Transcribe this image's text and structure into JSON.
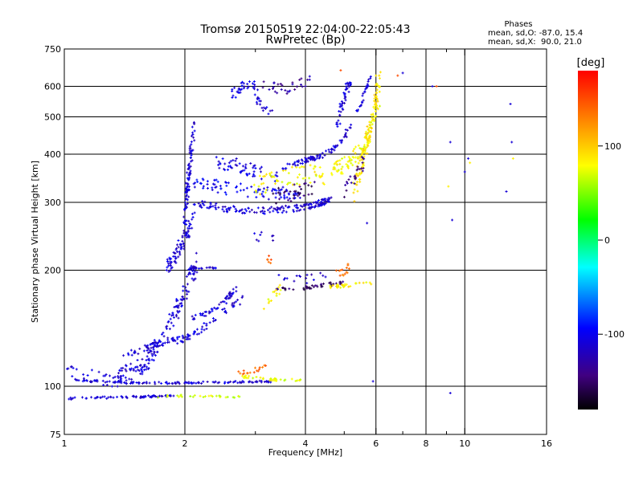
{
  "chart_data": {
    "type": "scatter",
    "title": "Tromsø 20150519 22:04:00-22:05:43",
    "subtitle": "RwPretec (Bp)",
    "xlabel": "Frequency [MHz]",
    "ylabel": "Stationary phase Virtual Height [km]",
    "x_scale": "log",
    "y_scale": "log",
    "xlim": [
      1,
      16
    ],
    "ylim": [
      75,
      750
    ],
    "x_ticks": [
      1,
      2,
      4,
      6,
      8,
      10,
      16
    ],
    "x_minor_ticks": [
      3,
      5,
      7,
      9
    ],
    "y_ticks": [
      75,
      100,
      200,
      300,
      400,
      500,
      600,
      750
    ],
    "grid": true,
    "x_gridlines": [
      2,
      4,
      6,
      8,
      10
    ],
    "y_gridlines": [
      100,
      200,
      300,
      400,
      500,
      600
    ],
    "info": {
      "heading": "Phases",
      "line1": "mean, sd,O: -87.0, 15.4",
      "line2": "mean, sd,X:  90.0, 21.0"
    },
    "colorbar": {
      "label": "[deg]",
      "range": [
        -180,
        180
      ],
      "ticks": [
        100,
        0,
        -100
      ],
      "colors": [
        "#ff0000",
        "#ff8000",
        "#ffff00",
        "#00ff00",
        "#00ffff",
        "#0000ff",
        "#400080",
        "#000000"
      ]
    },
    "traces": [
      {
        "kind": "line",
        "x": [
          1.0,
          1.3,
          1.6,
          1.9
        ],
        "y": [
          93,
          93.5,
          94,
          94.5
        ],
        "phase": -110,
        "n": 70,
        "spread_y": 0.006
      },
      {
        "kind": "line",
        "x": [
          1.7,
          2.0,
          2.4,
          2.8
        ],
        "y": [
          94,
          94.5,
          94,
          94
        ],
        "phase": 70,
        "n": 28,
        "spread_y": 0.006
      },
      {
        "kind": "line",
        "x": [
          1.05,
          1.3,
          1.6,
          2.0,
          2.6,
          3.3
        ],
        "y": [
          104,
          102.5,
          102,
          102,
          102.5,
          103
        ],
        "phase": -110,
        "n": 120,
        "spread_y": 0.006
      },
      {
        "kind": "line",
        "x": [
          2.8,
          3.3,
          3.9
        ],
        "y": [
          106,
          104,
          104
        ],
        "phase": 75,
        "n": 35,
        "spread_y": 0.008
      },
      {
        "kind": "line",
        "x": [
          2.7,
          3.0,
          3.2
        ],
        "y": [
          108,
          110,
          115
        ],
        "phase": 140,
        "n": 18,
        "spread_y": 0.012
      },
      {
        "kind": "line",
        "x": [
          1.0,
          1.2,
          1.4
        ],
        "y": [
          110,
          105,
          103
        ],
        "phase": -110,
        "n": 30,
        "spread_y": 0.04
      },
      {
        "kind": "line",
        "x": [
          1.35,
          1.6,
          1.9,
          2.15
        ],
        "y": [
          104,
          115,
          155,
          210
        ],
        "phase": -110,
        "n": 170,
        "spread_y": 0.06
      },
      {
        "kind": "line",
        "x": [
          1.4,
          1.7,
          2.05,
          2.8
        ],
        "y": [
          120,
          128,
          134,
          170
        ],
        "phase": -110,
        "n": 110,
        "spread_y": 0.02
      },
      {
        "kind": "line",
        "x": [
          2.05,
          2.3,
          2.5,
          2.7
        ],
        "y": [
          150,
          155,
          165,
          180
        ],
        "phase": -110,
        "n": 50,
        "spread_y": 0.015
      },
      {
        "kind": "line",
        "x": [
          1.8,
          1.95,
          2.1
        ],
        "y": [
          200,
          230,
          270
        ],
        "phase": -110,
        "n": 80,
        "spread_y": 0.05
      },
      {
        "kind": "line",
        "x": [
          2.0,
          2.05,
          2.1
        ],
        "y": [
          270,
          360,
          470
        ],
        "phase": -110,
        "n": 90,
        "spread_y": 0.05
      },
      {
        "kind": "line",
        "x": [
          2.05,
          2.2,
          2.4
        ],
        "y": [
          202,
          203,
          202
        ],
        "phase": -110,
        "n": 24,
        "spread_y": 0.006
      },
      {
        "kind": "line",
        "x": [
          2.1,
          2.5,
          3.0,
          3.6,
          4.2,
          4.6
        ],
        "y": [
          300,
          289,
          285,
          288,
          295,
          305
        ],
        "phase": -110,
        "n": 160,
        "spread_y": 0.02
      },
      {
        "kind": "line",
        "x": [
          2.1,
          2.6,
          3.2,
          3.9
        ],
        "y": [
          340,
          325,
          318,
          320
        ],
        "phase": -100,
        "n": 90,
        "spread_y": 0.04
      },
      {
        "kind": "line",
        "x": [
          2.4,
          2.7,
          3.0,
          3.4
        ],
        "y": [
          380,
          375,
          360,
          345
        ],
        "phase": -105,
        "n": 55,
        "spread_y": 0.04
      },
      {
        "kind": "line",
        "x": [
          3.0,
          3.5,
          4.0,
          4.5
        ],
        "y": [
          330,
          345,
          355,
          352
        ],
        "phase": 80,
        "n": 60,
        "spread_y": 0.06
      },
      {
        "kind": "line",
        "x": [
          3.3,
          3.8,
          4.2
        ],
        "y": [
          310,
          318,
          330
        ],
        "phase": -150,
        "n": 30,
        "spread_y": 0.05
      },
      {
        "kind": "line",
        "x": [
          3.5,
          4.0,
          4.5,
          5.0,
          5.4,
          5.8
        ],
        "y": [
          370,
          385,
          400,
          440,
          520,
          640
        ],
        "phase": -110,
        "n": 110,
        "spread_y": 0.015
      },
      {
        "kind": "line",
        "x": [
          4.6,
          5.1,
          5.6,
          6.1
        ],
        "y": [
          360,
          380,
          420,
          520
        ],
        "phase": 80,
        "n": 80,
        "spread_y": 0.05
      },
      {
        "kind": "line",
        "x": [
          5.3,
          5.6,
          5.9,
          6.1
        ],
        "y": [
          320,
          400,
          500,
          620
        ],
        "phase": 90,
        "n": 120,
        "spread_y": 0.06
      },
      {
        "kind": "line",
        "x": [
          5.0,
          5.3,
          5.6
        ],
        "y": [
          320,
          350,
          380
        ],
        "phase": -140,
        "n": 25,
        "spread_y": 0.05
      },
      {
        "kind": "line",
        "x": [
          4.8,
          5.0,
          5.2
        ],
        "y": [
          480,
          560,
          640
        ],
        "phase": -110,
        "n": 45,
        "spread_y": 0.03
      },
      {
        "kind": "line",
        "x": [
          2.6,
          2.8,
          3.1
        ],
        "y": [
          570,
          600,
          610
        ],
        "phase": -105,
        "n": 30,
        "spread_y": 0.03
      },
      {
        "kind": "line",
        "x": [
          3.1,
          3.6,
          4.1
        ],
        "y": [
          600,
          590,
          620
        ],
        "phase": -130,
        "n": 30,
        "spread_y": 0.03
      },
      {
        "kind": "line",
        "x": [
          3.0,
          3.1,
          3.3
        ],
        "y": [
          580,
          530,
          520
        ],
        "phase": -110,
        "n": 20,
        "spread_y": 0.03
      },
      {
        "kind": "line",
        "x": [
          3.4,
          4.0,
          4.6,
          5.0
        ],
        "y": [
          178,
          180,
          184,
          186
        ],
        "phase": -150,
        "n": 45,
        "spread_y": 0.01
      },
      {
        "kind": "line",
        "x": [
          4.6,
          5.2,
          5.9
        ],
        "y": [
          181,
          183,
          185
        ],
        "phase": 85,
        "n": 30,
        "spread_y": 0.01
      },
      {
        "kind": "line",
        "x": [
          4.8,
          5.0,
          5.2
        ],
        "y": [
          193,
          200,
          208
        ],
        "phase": 140,
        "n": 14,
        "spread_y": 0.03
      },
      {
        "kind": "line",
        "x": [
          3.1,
          3.3,
          3.5
        ],
        "y": [
          155,
          170,
          180
        ],
        "phase": 85,
        "n": 14,
        "spread_y": 0.03
      },
      {
        "kind": "line",
        "x": [
          3.3,
          3.8,
          4.5
        ],
        "y": [
          195,
          190,
          192
        ],
        "phase": -115,
        "n": 16,
        "spread_y": 0.03
      },
      {
        "kind": "line",
        "x": [
          3.2,
          3.3
        ],
        "y": [
          218,
          205
        ],
        "phase": 150,
        "n": 6,
        "spread_y": 0.03
      },
      {
        "kind": "line",
        "x": [
          2.9,
          3.1,
          3.4
        ],
        "y": [
          250,
          245,
          240
        ],
        "phase": -115,
        "n": 8,
        "spread_y": 0.04
      },
      {
        "kind": "scatter",
        "points": [
          [
            9.2,
            430
          ],
          [
            9.3,
            270
          ],
          [
            9.2,
            96
          ],
          [
            10.0,
            360
          ],
          [
            10.2,
            390
          ],
          [
            13.0,
            540
          ],
          [
            13.1,
            430
          ],
          [
            7.0,
            650
          ],
          [
            8.3,
            600
          ],
          [
            5.9,
            103
          ],
          [
            12.7,
            320
          ],
          [
            5.7,
            265
          ]
        ],
        "phase": -110
      },
      {
        "kind": "scatter",
        "points": [
          [
            10.3,
            380
          ],
          [
            9.1,
            330
          ],
          [
            13.2,
            390
          ],
          [
            6.0,
            640
          ]
        ],
        "phase": 85
      },
      {
        "kind": "scatter",
        "points": [
          [
            8.5,
            600
          ],
          [
            6.8,
            640
          ],
          [
            4.9,
            660
          ]
        ],
        "phase": 150
      }
    ]
  }
}
